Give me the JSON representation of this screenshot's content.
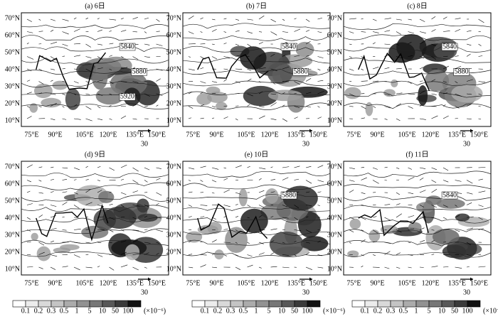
{
  "panels": [
    {
      "title": "(a) 6日",
      "contour_labels": [
        "5840",
        "5880",
        "5920"
      ]
    },
    {
      "title": "(b) 7日",
      "contour_labels": [
        "5840",
        "5880"
      ]
    },
    {
      "title": "(c) 8日",
      "contour_labels": [
        "5840",
        "5880"
      ]
    },
    {
      "title": "(d) 9日",
      "contour_labels": []
    },
    {
      "title": "(e) 10日",
      "contour_labels": [
        "5880"
      ]
    },
    {
      "title": "(f) 11日",
      "contour_labels": [
        "5840"
      ]
    }
  ],
  "lat_labels": [
    "70°N",
    "60°N",
    "50°N",
    "40°N",
    "30°N",
    "20°N",
    "10°N"
  ],
  "lon_labels": [
    "75°E",
    "90°E",
    "105°E",
    "120°E",
    "135°E",
    "150°E"
  ],
  "ref_vector": "30",
  "colorbar": {
    "labels": [
      "0.1",
      "0.2",
      "0.3",
      "0.5",
      "1",
      "5",
      "10",
      "50",
      "100"
    ],
    "unit": "(×10⁻⁶)",
    "colors": [
      "#ffffff",
      "#ececec",
      "#d9d9d9",
      "#c4c4c4",
      "#ababab",
      "#929292",
      "#777777",
      "#585858",
      "#3a3a3a",
      "#111111"
    ]
  }
}
